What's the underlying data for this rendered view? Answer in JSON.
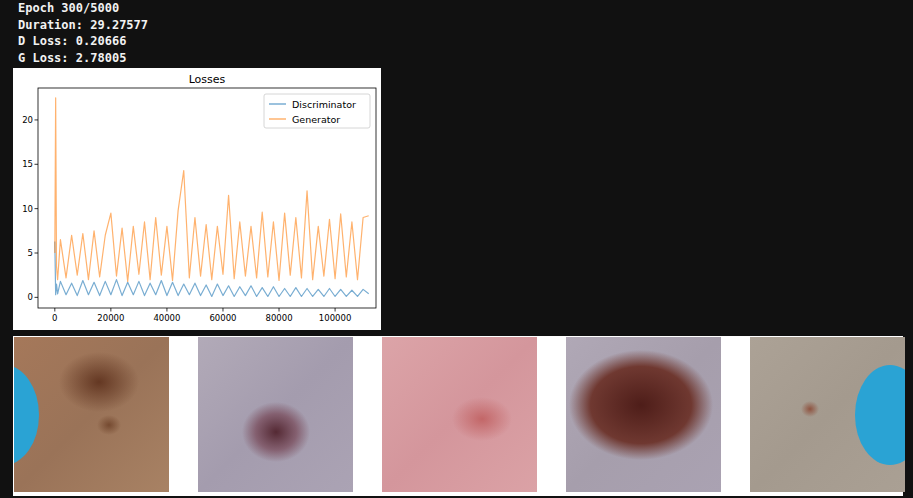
{
  "header": {
    "lines": [
      "Epoch 300/5000",
      "Duration: 29.27577",
      "D Loss: 0.20666",
      "G Loss: 2.78005"
    ]
  },
  "chart_data": {
    "type": "line",
    "title": "Losses",
    "x": [
      0,
      300,
      600,
      1000,
      2000,
      4000,
      6000,
      8000,
      10000,
      12000,
      14000,
      16000,
      18000,
      20000,
      22000,
      24000,
      26000,
      28000,
      30000,
      32000,
      34000,
      36000,
      38000,
      40000,
      42000,
      44000,
      46000,
      48000,
      50000,
      52000,
      54000,
      56000,
      58000,
      60000,
      62000,
      64000,
      66000,
      68000,
      70000,
      72000,
      74000,
      76000,
      78000,
      80000,
      82000,
      84000,
      86000,
      88000,
      90000,
      92000,
      94000,
      96000,
      98000,
      100000,
      102000,
      104000,
      106000,
      108000,
      110000,
      112000
    ],
    "series": [
      {
        "name": "Discriminator",
        "color": "#1f77b4",
        "values": [
          6.3,
          0.3,
          1.5,
          0.4,
          1.8,
          0.3,
          1.6,
          0.2,
          1.9,
          0.3,
          1.7,
          0.2,
          1.8,
          0.3,
          2.0,
          0.2,
          1.7,
          0.3,
          1.8,
          0.2,
          1.6,
          0.3,
          1.9,
          0.2,
          1.7,
          0.2,
          1.5,
          0.3,
          1.6,
          0.2,
          1.4,
          0.1,
          1.5,
          0.2,
          1.3,
          0.1,
          1.2,
          0.2,
          1.3,
          0.1,
          1.1,
          0.1,
          1.2,
          0.1,
          1.0,
          0.1,
          1.1,
          0.1,
          1.0,
          0.1,
          0.9,
          0.1,
          1.0,
          0.1,
          0.9,
          0.1,
          0.8,
          0.1,
          0.9,
          0.4
        ]
      },
      {
        "name": "Generator",
        "color": "#ff7f0e",
        "values": [
          5.0,
          22.5,
          3.5,
          2.0,
          6.5,
          2.2,
          7.0,
          2.5,
          7.2,
          2.0,
          7.5,
          2.3,
          7.0,
          9.5,
          2.4,
          7.8,
          1.8,
          8.0,
          2.6,
          8.5,
          2.0,
          9.0,
          2.5,
          8.0,
          1.9,
          9.8,
          14.3,
          2.2,
          9.0,
          2.4,
          8.2,
          2.0,
          8.0,
          2.6,
          11.5,
          2.1,
          8.5,
          2.4,
          8.0,
          2.2,
          9.6,
          2.3,
          8.5,
          1.9,
          9.5,
          2.5,
          9.0,
          2.2,
          12.0,
          2.0,
          8.0,
          2.4,
          8.8,
          2.1,
          9.4,
          2.3,
          8.5,
          2.0,
          9.0,
          9.2
        ]
      }
    ],
    "xlim": [
      -6000,
      114600
    ],
    "xticks": [
      0,
      20000,
      40000,
      60000,
      80000,
      100000
    ],
    "ylim": [
      -1.2,
      23.6
    ],
    "yticks": [
      0,
      5,
      10,
      15,
      20
    ],
    "legend": "upper right",
    "grid": false
  }
}
